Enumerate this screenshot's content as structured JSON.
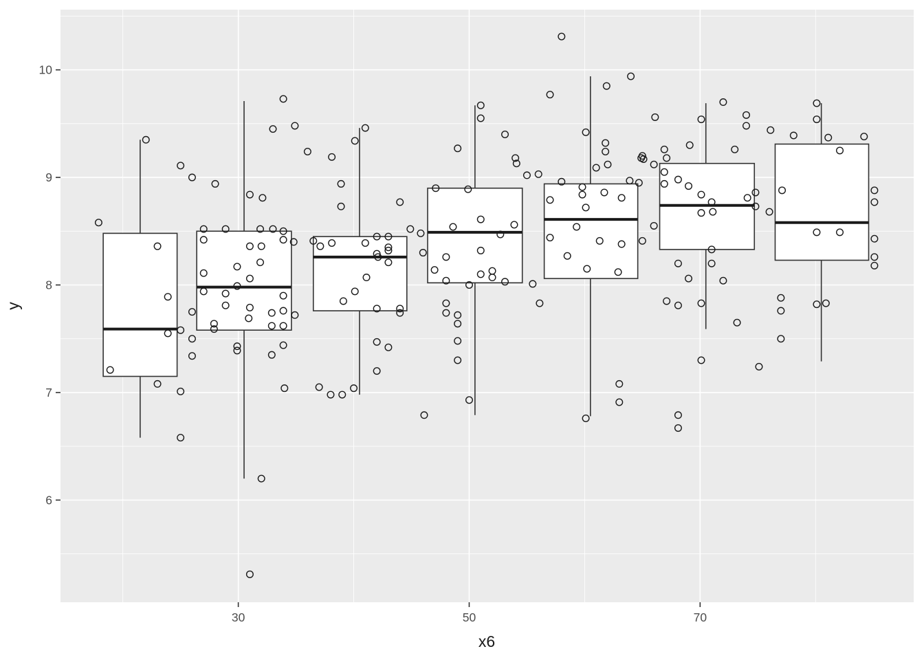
{
  "figure": {
    "kind": "ggplot boxplot with jittered points",
    "title": ""
  },
  "style": {
    "panel_bg": "#EBEBEB",
    "grid_major": "#FFFFFF",
    "grid_minor": "#F5F5F5",
    "box_stroke": "#333333",
    "box_fill": "#FFFFFF",
    "median_stroke": "#1A1A1A",
    "point_stroke": "#1A1A1A",
    "tick_label_color": "#4D4D4D",
    "axis_title_color": "#1A1A1A",
    "tick_mark_color": "#333333"
  },
  "chart_data": {
    "type": "boxplot",
    "title": "",
    "xlabel": "x6",
    "ylabel": "y",
    "xlim": [
      14.6,
      88.5
    ],
    "ylim": [
      5.05,
      10.56
    ],
    "grid": "on",
    "legend": "none",
    "x_ticks": [
      {
        "value": 30,
        "label": "30"
      },
      {
        "value": 50,
        "label": "50"
      },
      {
        "value": 70,
        "label": "70"
      }
    ],
    "y_ticks": [
      {
        "value": 6,
        "label": "6"
      },
      {
        "value": 7,
        "label": "7"
      },
      {
        "value": 8,
        "label": "8"
      },
      {
        "value": 9,
        "label": "9"
      },
      {
        "value": 10,
        "label": "10"
      }
    ],
    "x_minor": [
      20,
      40,
      60,
      80
    ],
    "y_minor": [
      5.5,
      6.5,
      7.5,
      8.5,
      9.5,
      10.5
    ],
    "boxes": [
      {
        "x": 21.5,
        "x_left": 18.3,
        "x_right": 24.7,
        "whisker_low": 6.58,
        "q1": 7.15,
        "median": 7.59,
        "q3": 8.48,
        "whisker_high": 9.35
      },
      {
        "x": 30.5,
        "x_left": 26.4,
        "x_right": 34.6,
        "whisker_low": 6.2,
        "q1": 7.58,
        "median": 7.98,
        "q3": 8.5,
        "whisker_high": 9.71
      },
      {
        "x": 40.5,
        "x_left": 36.5,
        "x_right": 44.6,
        "whisker_low": 6.98,
        "q1": 7.76,
        "median": 8.26,
        "q3": 8.45,
        "whisker_high": 9.46
      },
      {
        "x": 50.5,
        "x_left": 46.4,
        "x_right": 54.6,
        "whisker_low": 6.79,
        "q1": 8.02,
        "median": 8.49,
        "q3": 8.9,
        "whisker_high": 9.67
      },
      {
        "x": 60.5,
        "x_left": 56.5,
        "x_right": 64.6,
        "whisker_low": 6.78,
        "q1": 8.06,
        "median": 8.61,
        "q3": 8.94,
        "whisker_high": 9.94
      },
      {
        "x": 70.5,
        "x_left": 66.5,
        "x_right": 74.7,
        "whisker_low": 7.59,
        "q1": 8.33,
        "median": 8.74,
        "q3": 9.13,
        "whisker_high": 9.69
      },
      {
        "x": 80.5,
        "x_left": 76.5,
        "x_right": 84.6,
        "whisker_low": 7.29,
        "q1": 8.23,
        "median": 8.58,
        "q3": 9.31,
        "whisker_high": 9.69
      }
    ],
    "points": [
      [
        17.9,
        8.58
      ],
      [
        22,
        9.35
      ],
      [
        23,
        8.36
      ],
      [
        23.9,
        7.89
      ],
      [
        25,
        7.58
      ],
      [
        23.9,
        7.55
      ],
      [
        18.9,
        7.21
      ],
      [
        23,
        7.08
      ],
      [
        25,
        7.01
      ],
      [
        25,
        6.58
      ],
      [
        26,
        7.75
      ],
      [
        26,
        7.5
      ],
      [
        26,
        7.34
      ],
      [
        25,
        9.11
      ],
      [
        26,
        9.0
      ],
      [
        28,
        8.94
      ],
      [
        33,
        9.45
      ],
      [
        34.9,
        9.48
      ],
      [
        33.9,
        9.73
      ],
      [
        31,
        8.84
      ],
      [
        32.1,
        8.81
      ],
      [
        27,
        8.52
      ],
      [
        28.9,
        8.52
      ],
      [
        31.9,
        8.52
      ],
      [
        33,
        8.52
      ],
      [
        33.9,
        8.5
      ],
      [
        33.9,
        8.42
      ],
      [
        34.8,
        8.4
      ],
      [
        27,
        8.42
      ],
      [
        31,
        8.36
      ],
      [
        32,
        8.36
      ],
      [
        31.9,
        8.21
      ],
      [
        29.9,
        8.17
      ],
      [
        27,
        8.11
      ],
      [
        31,
        8.06
      ],
      [
        29.9,
        7.99
      ],
      [
        27,
        7.94
      ],
      [
        28.9,
        7.92
      ],
      [
        33.9,
        7.9
      ],
      [
        28.9,
        7.81
      ],
      [
        31,
        7.79
      ],
      [
        33.9,
        7.76
      ],
      [
        32.9,
        7.74
      ],
      [
        34.9,
        7.72
      ],
      [
        30.9,
        7.69
      ],
      [
        27.9,
        7.64
      ],
      [
        33.9,
        7.62
      ],
      [
        27.9,
        7.59
      ],
      [
        32.9,
        7.62
      ],
      [
        29.9,
        7.43
      ],
      [
        29.9,
        7.39
      ],
      [
        33.9,
        7.44
      ],
      [
        32.9,
        7.35
      ],
      [
        34,
        7.04
      ],
      [
        32,
        6.2
      ],
      [
        31,
        5.31
      ],
      [
        36,
        9.24
      ],
      [
        38.1,
        9.19
      ],
      [
        40.1,
        9.34
      ],
      [
        41,
        9.46
      ],
      [
        38.9,
        8.94
      ],
      [
        38.9,
        8.73
      ],
      [
        44,
        8.77
      ],
      [
        36.5,
        8.41
      ],
      [
        37.1,
        8.36
      ],
      [
        38.1,
        8.39
      ],
      [
        41,
        8.39
      ],
      [
        42,
        8.45
      ],
      [
        43,
        8.45
      ],
      [
        44.9,
        8.52
      ],
      [
        45.8,
        8.48
      ],
      [
        43,
        8.35
      ],
      [
        42,
        8.29
      ],
      [
        42.1,
        8.26
      ],
      [
        43,
        8.32
      ],
      [
        43,
        8.21
      ],
      [
        39.1,
        7.85
      ],
      [
        41.1,
        8.07
      ],
      [
        40.1,
        7.94
      ],
      [
        42,
        7.78
      ],
      [
        44,
        7.78
      ],
      [
        44,
        7.74
      ],
      [
        42,
        7.47
      ],
      [
        43,
        7.42
      ],
      [
        42,
        7.2
      ],
      [
        37,
        7.05
      ],
      [
        38,
        6.98
      ],
      [
        39,
        6.98
      ],
      [
        40,
        7.04
      ],
      [
        46.1,
        6.79
      ],
      [
        51,
        9.67
      ],
      [
        51,
        9.55
      ],
      [
        53.1,
        9.4
      ],
      [
        49,
        9.27
      ],
      [
        54,
        9.18
      ],
      [
        54.1,
        9.13
      ],
      [
        55,
        9.02
      ],
      [
        56,
        9.03
      ],
      [
        58,
        8.96
      ],
      [
        47.1,
        8.9
      ],
      [
        49.9,
        8.89
      ],
      [
        48.6,
        8.54
      ],
      [
        51,
        8.61
      ],
      [
        52.7,
        8.47
      ],
      [
        53.9,
        8.56
      ],
      [
        46,
        8.3
      ],
      [
        48,
        8.26
      ],
      [
        47,
        8.14
      ],
      [
        48,
        8.04
      ],
      [
        51,
        8.32
      ],
      [
        51,
        8.1
      ],
      [
        52,
        8.13
      ],
      [
        52,
        8.07
      ],
      [
        53.1,
        8.03
      ],
      [
        50,
        8.0
      ],
      [
        48,
        7.83
      ],
      [
        48,
        7.74
      ],
      [
        49,
        7.72
      ],
      [
        49,
        7.64
      ],
      [
        49,
        7.48
      ],
      [
        49,
        7.3
      ],
      [
        50,
        6.93
      ],
      [
        55.5,
        8.01
      ],
      [
        56.1,
        7.83
      ],
      [
        58,
        10.31
      ],
      [
        57,
        9.77
      ],
      [
        61.9,
        9.85
      ],
      [
        64,
        9.94
      ],
      [
        60.1,
        9.42
      ],
      [
        61.8,
        9.32
      ],
      [
        61.8,
        9.24
      ],
      [
        61,
        9.09
      ],
      [
        62,
        9.12
      ],
      [
        65,
        9.2
      ],
      [
        65.1,
        9.17
      ],
      [
        66,
        9.12
      ],
      [
        63.9,
        8.97
      ],
      [
        64.7,
        8.95
      ],
      [
        64.9,
        9.18
      ],
      [
        57,
        8.79
      ],
      [
        59.8,
        8.91
      ],
      [
        59.8,
        8.84
      ],
      [
        60.1,
        8.72
      ],
      [
        61.7,
        8.86
      ],
      [
        63.2,
        8.81
      ],
      [
        59.3,
        8.54
      ],
      [
        57,
        8.44
      ],
      [
        61.3,
        8.41
      ],
      [
        63.2,
        8.38
      ],
      [
        58.5,
        8.27
      ],
      [
        60.2,
        8.15
      ],
      [
        62.9,
        8.12
      ],
      [
        60.1,
        6.76
      ],
      [
        63,
        7.08
      ],
      [
        63,
        6.91
      ],
      [
        68.1,
        6.79
      ],
      [
        68.1,
        6.67
      ],
      [
        66,
        8.55
      ],
      [
        65,
        8.41
      ],
      [
        66.1,
        9.56
      ],
      [
        70.1,
        9.54
      ],
      [
        72,
        9.7
      ],
      [
        74,
        9.58
      ],
      [
        74,
        9.48
      ],
      [
        66.9,
        9.26
      ],
      [
        67.1,
        9.18
      ],
      [
        69.1,
        9.3
      ],
      [
        73,
        9.26
      ],
      [
        66.9,
        9.05
      ],
      [
        68.1,
        8.98
      ],
      [
        69,
        8.92
      ],
      [
        70.1,
        8.84
      ],
      [
        71,
        8.77
      ],
      [
        71.1,
        8.68
      ],
      [
        70.1,
        8.67
      ],
      [
        66.9,
        8.94
      ],
      [
        74.1,
        8.81
      ],
      [
        74.8,
        8.86
      ],
      [
        74.8,
        8.73
      ],
      [
        68.1,
        8.2
      ],
      [
        69,
        8.06
      ],
      [
        71,
        8.33
      ],
      [
        71,
        8.2
      ],
      [
        72,
        8.04
      ],
      [
        67.1,
        7.85
      ],
      [
        68.1,
        7.81
      ],
      [
        70.1,
        7.83
      ],
      [
        73.2,
        7.65
      ],
      [
        70.1,
        7.3
      ],
      [
        76,
        8.68
      ],
      [
        76.1,
        9.44
      ],
      [
        78.1,
        9.39
      ],
      [
        81.1,
        9.37
      ],
      [
        84.2,
        9.38
      ],
      [
        80.1,
        9.69
      ],
      [
        80.1,
        9.54
      ],
      [
        82.1,
        9.25
      ],
      [
        77.1,
        8.88
      ],
      [
        80.1,
        8.49
      ],
      [
        82.1,
        8.49
      ],
      [
        85.1,
        8.88
      ],
      [
        85.1,
        8.77
      ],
      [
        85.1,
        8.43
      ],
      [
        85.1,
        8.26
      ],
      [
        85.1,
        8.18
      ],
      [
        77,
        7.88
      ],
      [
        77,
        7.76
      ],
      [
        80.1,
        7.82
      ],
      [
        80.9,
        7.83
      ],
      [
        77,
        7.5
      ],
      [
        75.1,
        7.24
      ]
    ]
  }
}
